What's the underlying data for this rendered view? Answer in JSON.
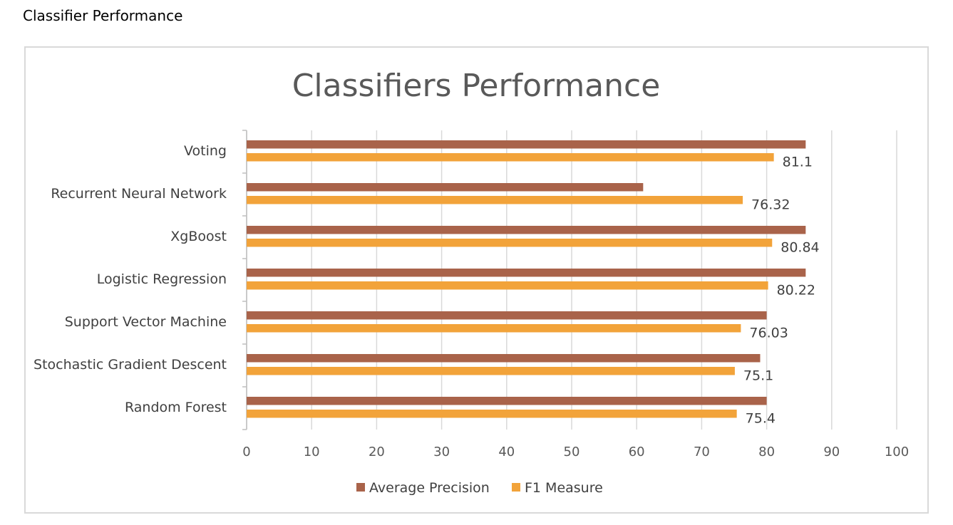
{
  "page": {
    "heading": "Classifier Performance"
  },
  "chart_data": {
    "type": "bar",
    "orientation": "horizontal",
    "title": "Classifiers Performance",
    "categories": [
      "Voting",
      "Recurrent Neural Network",
      "XgBoost",
      "Logistic Regression",
      "Support Vector Machine",
      "Stochastic Gradient Descent",
      "Random Forest"
    ],
    "series": [
      {
        "name": "Average Precision",
        "color": "#a9634a",
        "values": [
          86,
          61,
          86,
          86,
          80,
          79,
          80
        ]
      },
      {
        "name": "F1 Measure",
        "color": "#f2a33a",
        "values": [
          81.1,
          76.32,
          80.84,
          80.22,
          76.03,
          75.1,
          75.4
        ],
        "data_labels": [
          "81.1",
          "76.32",
          "80.84",
          "80.22",
          "76.03",
          "75.1",
          "75.4"
        ]
      }
    ],
    "xlim": [
      0,
      100
    ],
    "xticks": [
      "0",
      "10",
      "20",
      "30",
      "40",
      "50",
      "60",
      "70",
      "80",
      "90",
      "100"
    ],
    "grid": true,
    "legend_position": "bottom"
  }
}
